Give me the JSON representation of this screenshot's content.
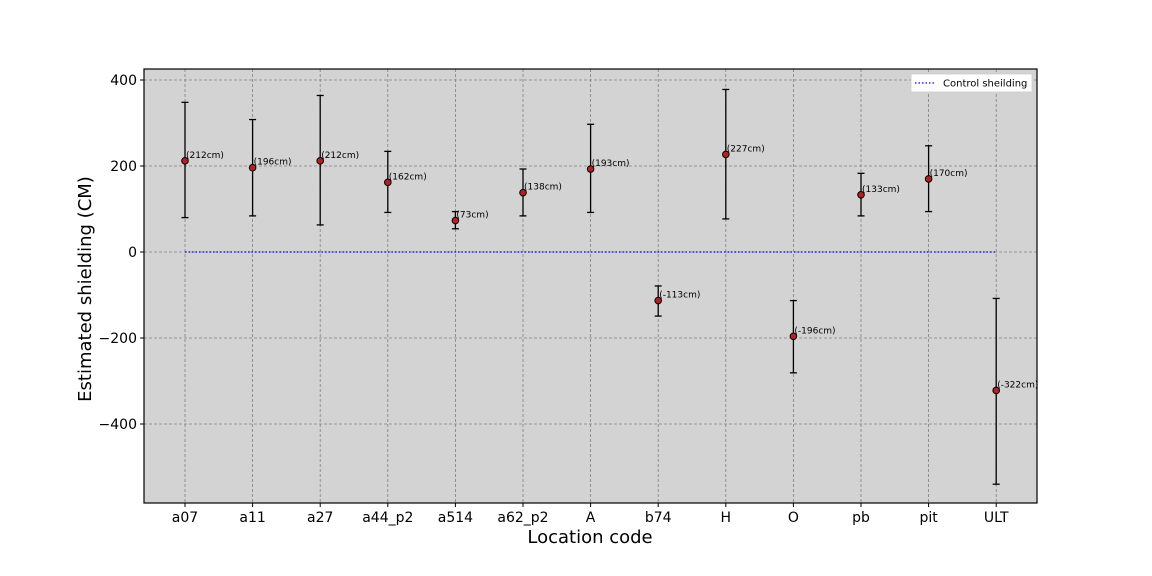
{
  "chart_data": {
    "type": "scatter",
    "xlabel": "Location code",
    "ylabel": "Estimated shielding (CM)",
    "categories": [
      "a07",
      "a11",
      "a27",
      "a44_p2",
      "a514",
      "a62_p2",
      "A",
      "b74",
      "H",
      "O",
      "pb",
      "pit",
      "ULT"
    ],
    "values": [
      212,
      196,
      212,
      162,
      73,
      138,
      193,
      -113,
      227,
      -196,
      133,
      170,
      -322
    ],
    "error_low": [
      80,
      84,
      63,
      92,
      54,
      84,
      92,
      -149,
      77,
      -281,
      84,
      94,
      -540
    ],
    "error_high": [
      348,
      308,
      364,
      234,
      94,
      193,
      297,
      -79,
      378,
      -113,
      183,
      247,
      -108
    ],
    "point_labels": [
      "(212cm)",
      "(196cm)",
      "(212cm)",
      "(162cm)",
      "(73cm)",
      "(138cm)",
      "(193cm)",
      "(-113cm)",
      "(227cm)",
      "(-196cm)",
      "(133cm)",
      "(170cm)",
      "(-322cm)"
    ],
    "yticks": [
      400,
      200,
      0,
      -200,
      -400
    ],
    "ylim": [
      -580,
      425
    ],
    "grid": true,
    "control_line": {
      "name": "Control sheilding",
      "value": 0
    },
    "legend": {
      "position": "top-right",
      "entries": [
        "Control sheilding"
      ]
    },
    "colors": {
      "plot_bg": "#d3d3d3",
      "marker_fill": "#b22222",
      "marker_edge": "#000000",
      "control_line": "#0000ff",
      "grid": "#808080"
    }
  }
}
